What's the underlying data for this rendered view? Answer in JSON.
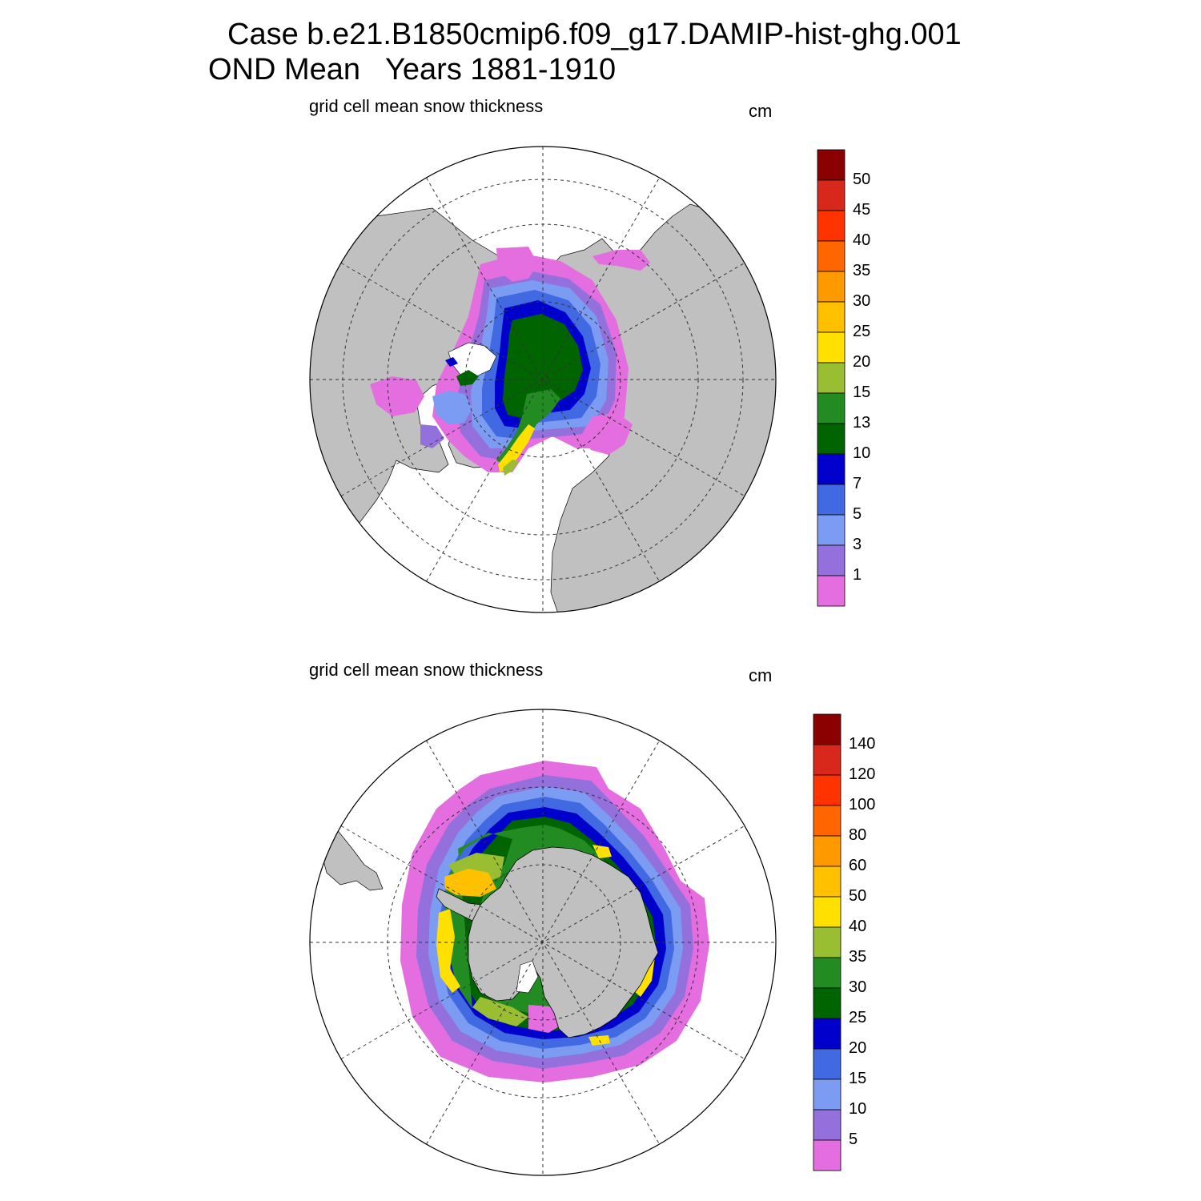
{
  "title": {
    "line1": "Case b.e21.B1850cmip6.f09_g17.DAMIP-hist-ghg.001",
    "line2": "OND Mean   Years 1881-1910"
  },
  "panels": [
    {
      "hemisphere": "north",
      "subtitle": "grid cell mean snow thickness",
      "units": "cm",
      "colorbar": {
        "labels": [
          "50",
          "45",
          "40",
          "35",
          "30",
          "25",
          "20",
          "15",
          "13",
          "10",
          "7",
          "5",
          "3",
          "1"
        ],
        "colors": [
          "#8b0000",
          "#d7281b",
          "#ff3300",
          "#ff6600",
          "#ff9900",
          "#ffc000",
          "#ffe000",
          "#9abe32",
          "#228b22",
          "#006400",
          "#0000cd",
          "#4169e1",
          "#7b9cf2",
          "#9370db",
          "#e46edf"
        ]
      }
    },
    {
      "hemisphere": "south",
      "subtitle": "grid cell mean snow thickness",
      "units": "cm",
      "colorbar": {
        "labels": [
          "140",
          "120",
          "100",
          "80",
          "60",
          "50",
          "40",
          "35",
          "30",
          "25",
          "20",
          "15",
          "10",
          "5"
        ],
        "colors": [
          "#8b0000",
          "#d7281b",
          "#ff3300",
          "#ff6600",
          "#ff9900",
          "#ffc000",
          "#ffe000",
          "#9abe32",
          "#228b22",
          "#006400",
          "#0000cd",
          "#4169e1",
          "#7b9cf2",
          "#9370db",
          "#e46edf"
        ]
      }
    }
  ],
  "colors": {
    "land": "#c0c0c0",
    "ocean": "#ffffff"
  }
}
